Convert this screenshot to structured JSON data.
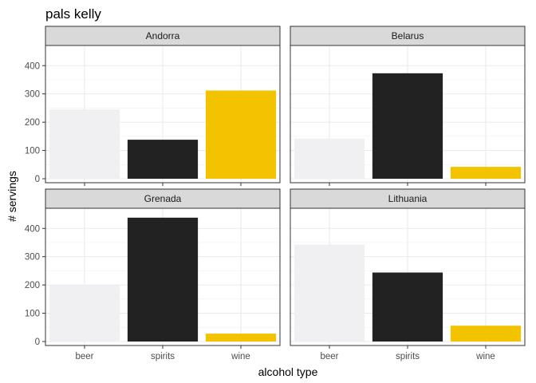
{
  "chart_data": {
    "type": "bar",
    "title": "pals kelly",
    "xlabel": "alcohol type",
    "ylabel": "# servings",
    "categories": [
      "beer",
      "spirits",
      "wine"
    ],
    "colors": {
      "beer": "#F0F0F2",
      "spirits": "#222222",
      "wine": "#F3C300"
    },
    "ylim": [
      0,
      460
    ],
    "yticks": [
      0,
      100,
      200,
      300,
      400
    ],
    "grid": true,
    "legend": "none",
    "panels": [
      {
        "name": "Andorra",
        "values": [
          245,
          138,
          312
        ]
      },
      {
        "name": "Belarus",
        "values": [
          142,
          373,
          42
        ]
      },
      {
        "name": "Grenada",
        "values": [
          199,
          438,
          28
        ]
      },
      {
        "name": "Lithuania",
        "values": [
          343,
          244,
          56
        ]
      }
    ]
  }
}
